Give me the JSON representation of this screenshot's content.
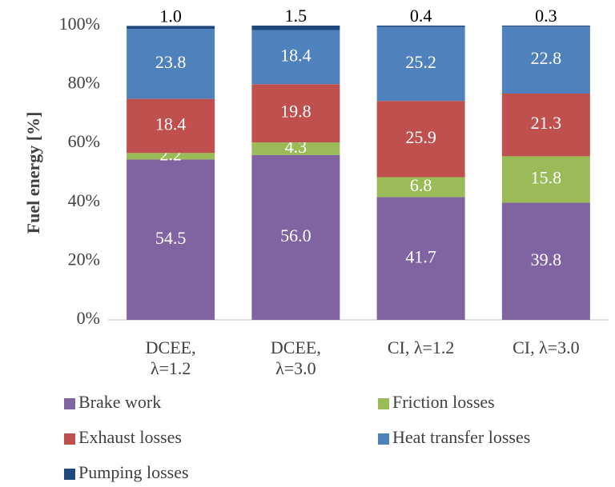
{
  "chart_data": {
    "type": "stacked_bar",
    "y_label": "Fuel energy [%]",
    "categories": [
      "DCEE, λ=1.2",
      "DCEE, λ=3.0",
      "CI, λ=1.2",
      "CI, λ=3.0"
    ],
    "series": [
      {
        "name": "Brake work",
        "color": "#8064a2",
        "values": [
          54.5,
          56.0,
          41.7,
          39.8
        ],
        "value_labels": [
          "54.5",
          "56.0",
          "41.7",
          "39.8"
        ]
      },
      {
        "name": "Friction losses",
        "color": "#9bbb59",
        "values": [
          2.2,
          4.3,
          6.8,
          15.8
        ],
        "value_labels": [
          "2.2",
          "4.3",
          "6.8",
          "15.8"
        ]
      },
      {
        "name": "Exhaust losses",
        "color": "#c0504d",
        "values": [
          18.4,
          19.8,
          25.9,
          21.3
        ],
        "value_labels": [
          "18.4",
          "19.8",
          "25.9",
          "21.3"
        ]
      },
      {
        "name": "Heat transfer losses",
        "color": "#4f81bd",
        "values": [
          23.8,
          18.4,
          25.2,
          22.8
        ],
        "value_labels": [
          "23.8",
          "18.4",
          "25.2",
          "22.8"
        ]
      },
      {
        "name": "Pumping losses",
        "color": "#1f497d",
        "values": [
          1.0,
          1.5,
          0.4,
          0.3
        ],
        "value_labels": [
          "1.0",
          "1.5",
          "0.4",
          "0.3"
        ]
      }
    ],
    "ylim": [
      0,
      100
    ],
    "yticks": [
      {
        "value": 0,
        "label": "0%"
      },
      {
        "value": 20,
        "label": "20%"
      },
      {
        "value": 40,
        "label": "40%"
      },
      {
        "value": 60,
        "label": "60%"
      },
      {
        "value": 80,
        "label": "80%"
      },
      {
        "value": 100,
        "label": "100%"
      }
    ],
    "grid": false
  }
}
